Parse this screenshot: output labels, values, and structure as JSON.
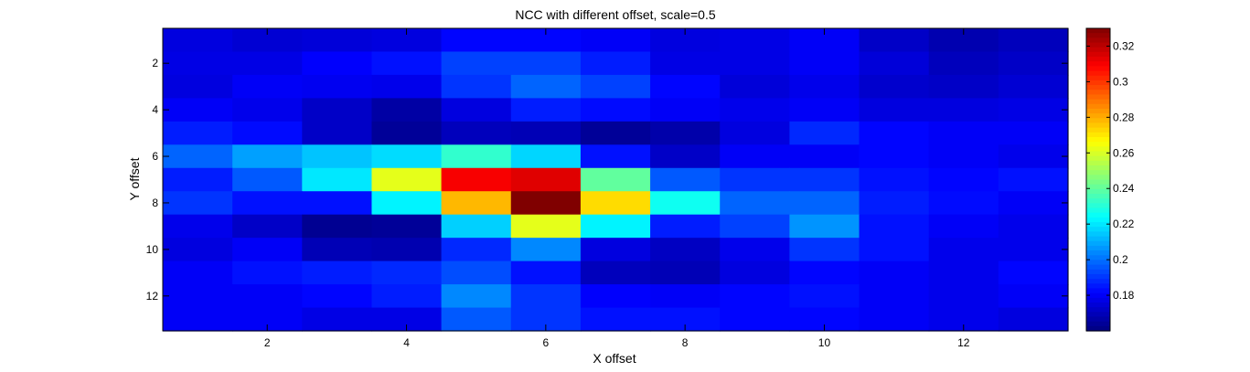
{
  "chart_data": {
    "type": "heatmap",
    "title": "NCC with different offset, scale=0.5",
    "xlabel": "X offset",
    "ylabel": "Y offset",
    "x": [
      1,
      2,
      3,
      4,
      5,
      6,
      7,
      8,
      9,
      10,
      11,
      12,
      13
    ],
    "y": [
      1,
      2,
      3,
      4,
      5,
      6,
      7,
      8,
      9,
      10,
      11,
      12,
      13
    ],
    "xlim": [
      0.5,
      13.5
    ],
    "ylim": [
      0.5,
      13.5
    ],
    "y_direction": "reverse",
    "xticks": [
      2,
      4,
      6,
      8,
      10,
      12
    ],
    "yticks": [
      2,
      4,
      6,
      8,
      10,
      12
    ],
    "colormap": "jet",
    "clim": [
      0.16,
      0.33
    ],
    "colorbar_ticks": [
      0.18,
      0.2,
      0.22,
      0.24,
      0.26,
      0.28,
      0.3,
      0.32
    ],
    "colorbar_tick_labels": [
      "0.18",
      "0.2",
      "0.22",
      "0.24",
      "0.26",
      "0.28",
      "0.3",
      "0.32"
    ],
    "z": [
      [
        0.176,
        0.174,
        0.175,
        0.176,
        0.182,
        0.182,
        0.18,
        0.176,
        0.177,
        0.18,
        0.172,
        0.168,
        0.17
      ],
      [
        0.177,
        0.177,
        0.181,
        0.184,
        0.192,
        0.192,
        0.186,
        0.177,
        0.177,
        0.18,
        0.175,
        0.17,
        0.172
      ],
      [
        0.176,
        0.18,
        0.179,
        0.178,
        0.19,
        0.198,
        0.192,
        0.182,
        0.175,
        0.178,
        0.173,
        0.172,
        0.174
      ],
      [
        0.18,
        0.178,
        0.172,
        0.166,
        0.176,
        0.186,
        0.183,
        0.18,
        0.178,
        0.18,
        0.176,
        0.176,
        0.177
      ],
      [
        0.186,
        0.183,
        0.172,
        0.164,
        0.17,
        0.169,
        0.164,
        0.167,
        0.176,
        0.188,
        0.182,
        0.18,
        0.18
      ],
      [
        0.198,
        0.208,
        0.214,
        0.218,
        0.232,
        0.217,
        0.184,
        0.172,
        0.18,
        0.18,
        0.182,
        0.18,
        0.178
      ],
      [
        0.186,
        0.196,
        0.22,
        0.262,
        0.31,
        0.314,
        0.24,
        0.196,
        0.19,
        0.19,
        0.184,
        0.182,
        0.184
      ],
      [
        0.19,
        0.184,
        0.184,
        0.222,
        0.278,
        0.33,
        0.272,
        0.226,
        0.198,
        0.198,
        0.186,
        0.183,
        0.18
      ],
      [
        0.178,
        0.172,
        0.163,
        0.164,
        0.216,
        0.262,
        0.222,
        0.186,
        0.192,
        0.206,
        0.184,
        0.18,
        0.178
      ],
      [
        0.176,
        0.18,
        0.169,
        0.168,
        0.188,
        0.204,
        0.176,
        0.171,
        0.178,
        0.19,
        0.184,
        0.178,
        0.178
      ],
      [
        0.18,
        0.184,
        0.186,
        0.188,
        0.194,
        0.184,
        0.17,
        0.169,
        0.176,
        0.182,
        0.18,
        0.178,
        0.182
      ],
      [
        0.18,
        0.18,
        0.182,
        0.186,
        0.204,
        0.19,
        0.181,
        0.18,
        0.182,
        0.184,
        0.18,
        0.178,
        0.18
      ],
      [
        0.18,
        0.18,
        0.177,
        0.177,
        0.196,
        0.19,
        0.184,
        0.184,
        0.182,
        0.182,
        0.18,
        0.178,
        0.176
      ]
    ]
  }
}
